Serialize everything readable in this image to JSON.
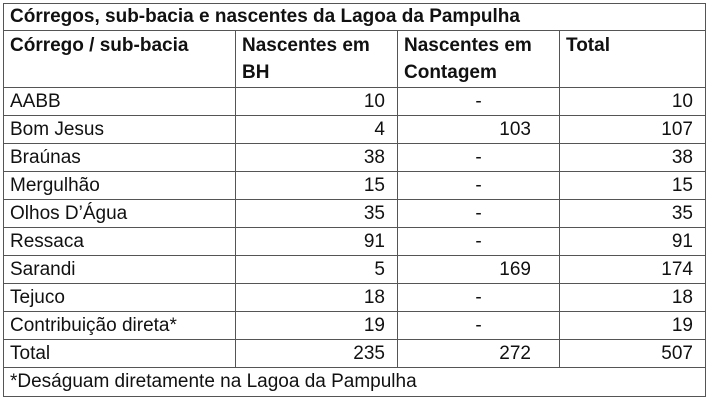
{
  "table": {
    "title": "Córregos, sub-bacia e nascentes da Lagoa da Pampulha",
    "headers": {
      "col1": "Córrego / sub-bacia",
      "col2": "Nascentes em BH",
      "col3": "Nascentes em Contagem",
      "col4": "Total"
    },
    "rows": [
      {
        "name": "AABB",
        "bh": "10",
        "contagem": "-",
        "total": "10"
      },
      {
        "name": "Bom Jesus",
        "bh": "4",
        "contagem": "103",
        "total": "107"
      },
      {
        "name": "Braúnas",
        "bh": "38",
        "contagem": "-",
        "total": "38"
      },
      {
        "name": "Mergulhão",
        "bh": "15",
        "contagem": "-",
        "total": "15"
      },
      {
        "name": "Olhos D’Água",
        "bh": "35",
        "contagem": "-",
        "total": "35"
      },
      {
        "name": "Ressaca",
        "bh": "91",
        "contagem": "-",
        "total": "91"
      },
      {
        "name": "Sarandi",
        "bh": "5",
        "contagem": "169",
        "total": "174"
      },
      {
        "name": "Tejuco",
        "bh": "18",
        "contagem": "-",
        "total": "18"
      },
      {
        "name": "Contribuição direta*",
        "bh": "19",
        "contagem": "-",
        "total": "19"
      },
      {
        "name": "Total",
        "bh": "235",
        "contagem": "272",
        "total": "507"
      }
    ],
    "footnote": "*Deságuam diretamente na Lagoa da Pampulha"
  }
}
